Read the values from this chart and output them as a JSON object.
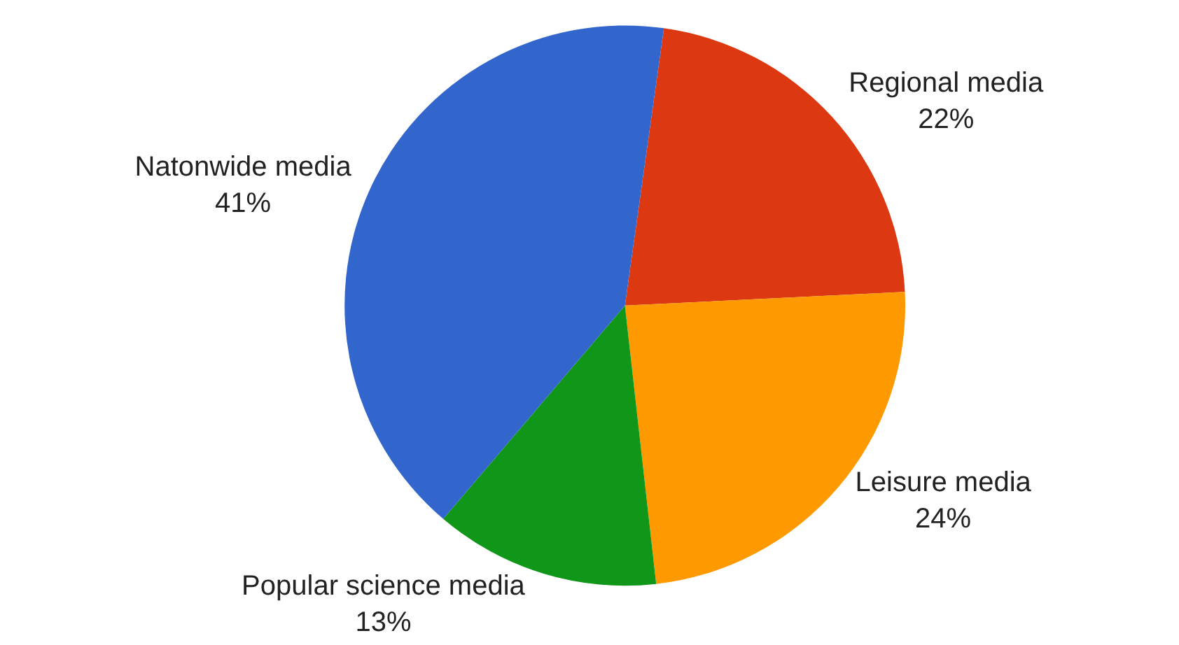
{
  "chart_data": {
    "type": "pie",
    "categories": [
      "Regional media",
      "Leisure media",
      "Popular science media",
      "Natonwide media"
    ],
    "values": [
      22,
      24,
      13,
      41
    ],
    "value_labels": [
      "22%",
      "24%",
      "13%",
      "41%"
    ],
    "colors": [
      "#dc3912",
      "#ff9900",
      "#109618",
      "#3366cc"
    ],
    "legend": false
  }
}
